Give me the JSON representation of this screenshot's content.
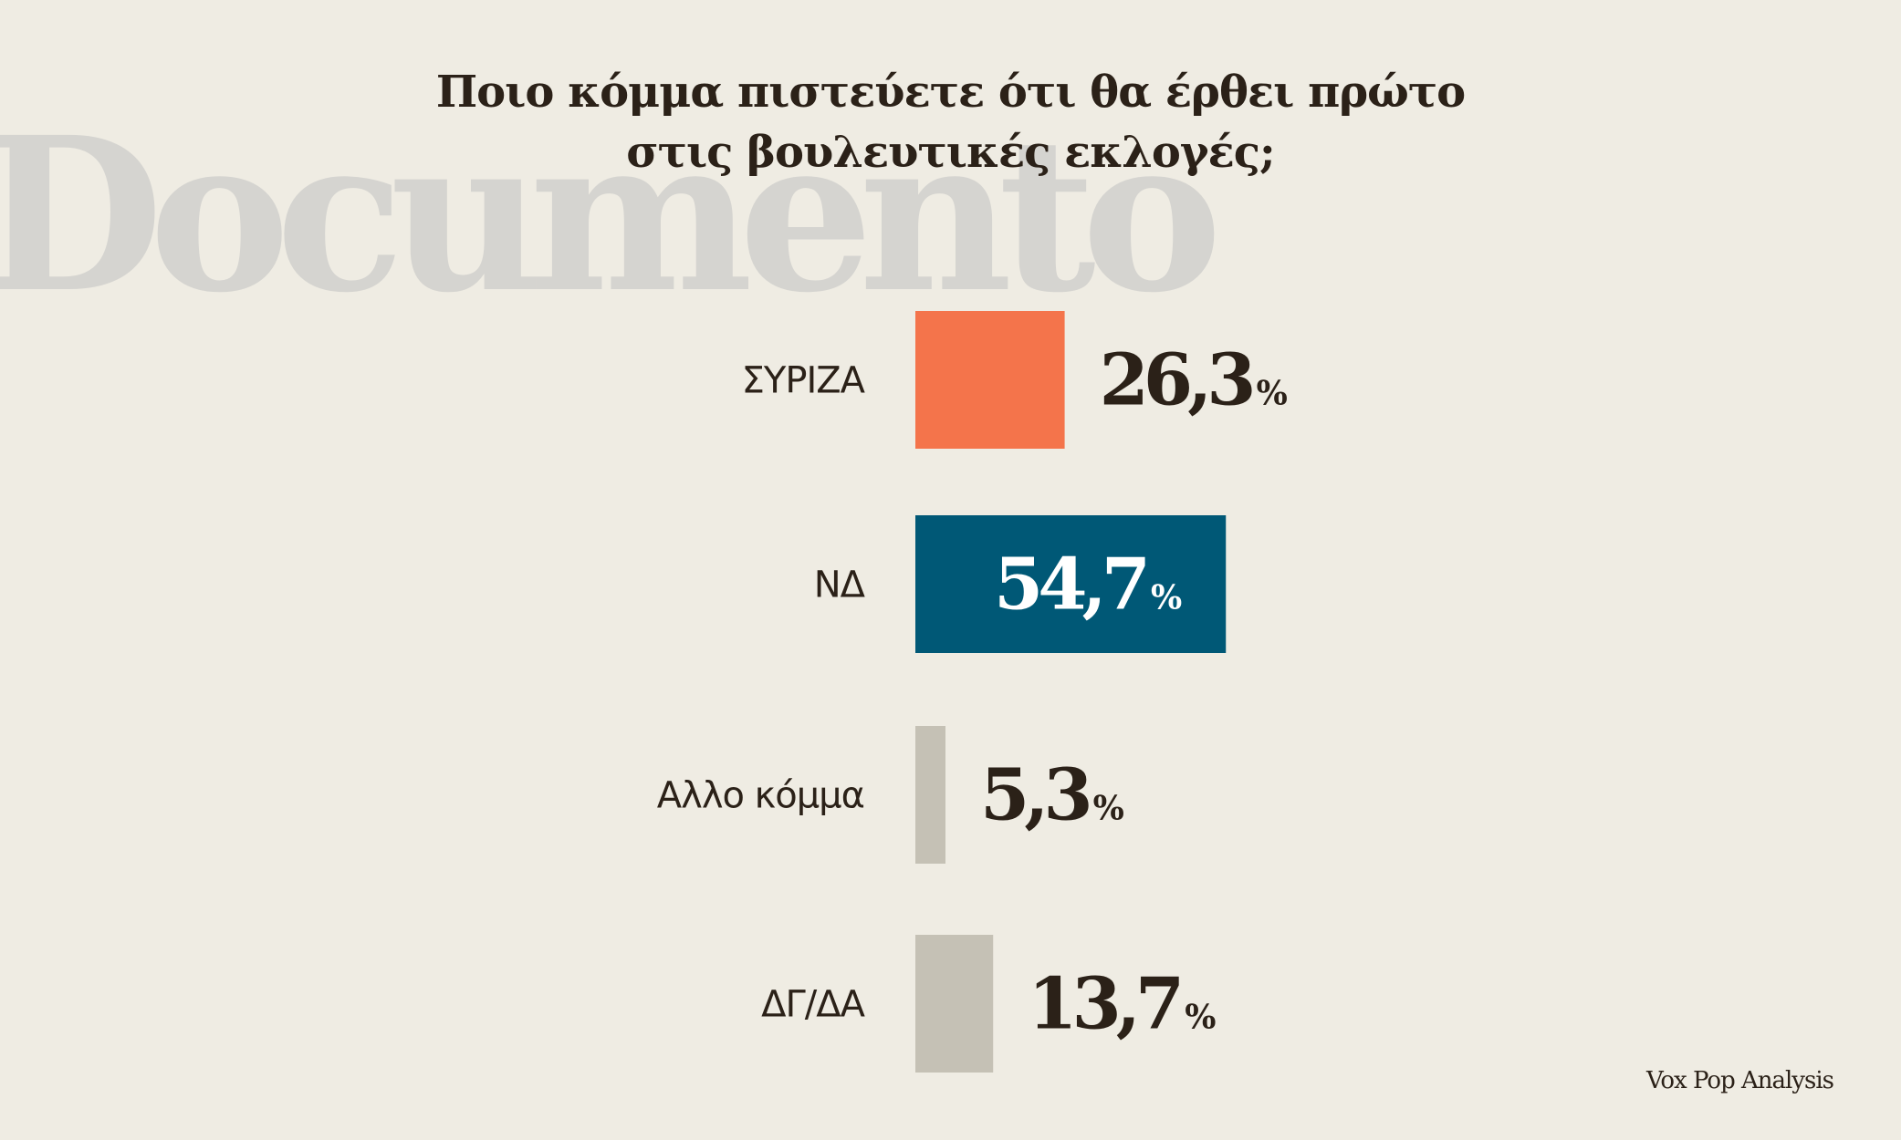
{
  "watermark": "Documento",
  "title": {
    "line1": "Ποιο κόμμα πιστεύετε ότι θα έρθει πρώτο",
    "line2": "στις βουλευτικές εκλογές;"
  },
  "source": "Vox Pop Analysis",
  "chart_data": {
    "type": "bar",
    "orientation": "horizontal",
    "title": "Ποιο κόμμα πιστεύετε ότι θα έρθει πρώτο στις βουλευτικές εκλογές;",
    "unit": "%",
    "categories": [
      "ΣΥΡΙΖΑ",
      "ΝΔ",
      "Αλλο κόμμα",
      "ΔΓ/ΔΑ"
    ],
    "values": [
      26.3,
      54.7,
      5.3,
      13.7
    ],
    "labels": [
      "26,3",
      "54,7",
      "5,3",
      "13,7"
    ],
    "colors": [
      "#f4744b",
      "#005876",
      "#c5c1b5",
      "#c5c1b5"
    ],
    "label_inside": [
      false,
      true,
      false,
      false
    ],
    "xlim": [
      0,
      55
    ],
    "grid": false
  }
}
